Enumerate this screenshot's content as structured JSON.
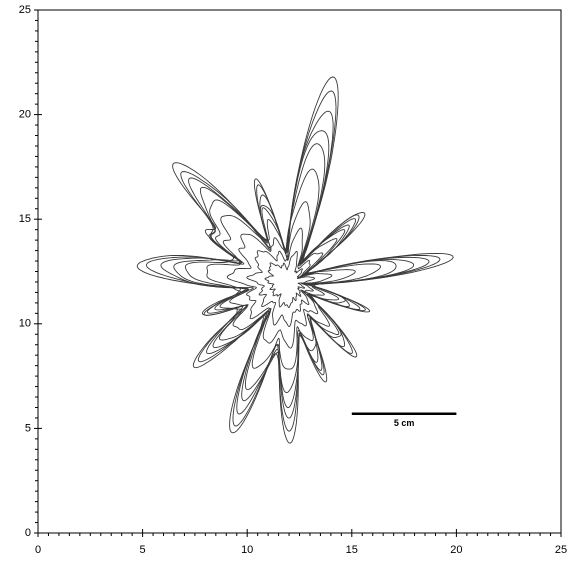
{
  "chart_data": {
    "type": "growth-pattern",
    "xlim": [
      0,
      25
    ],
    "ylim": [
      0,
      25
    ],
    "xticks": [
      0,
      5,
      10,
      15,
      20,
      25
    ],
    "yticks": [
      0,
      5,
      10,
      15,
      20,
      25
    ],
    "x_minor_ticks": [
      0.5,
      1,
      1.5,
      2,
      2.5,
      3,
      3.5,
      4,
      4.5,
      5.5,
      6,
      6.5,
      7,
      7.5,
      8,
      8.5,
      9,
      9.5,
      10.5,
      11,
      11.5,
      12,
      12.5,
      13,
      13.5,
      14,
      14.5,
      15.5,
      16,
      16.5,
      17,
      17.5,
      18,
      18.5,
      19,
      19.5,
      20.5,
      21,
      21.5,
      22,
      22.5,
      23,
      23.5,
      24,
      24.5
    ],
    "y_minor_ticks": [
      0.5,
      1,
      1.5,
      2,
      2.5,
      3,
      3.5,
      4,
      4.5,
      5.5,
      6,
      6.5,
      7,
      7.5,
      8,
      8.5,
      9,
      9.5,
      10.5,
      11,
      11.5,
      12,
      12.5,
      13,
      13.5,
      14,
      14.5,
      15.5,
      16,
      16.5,
      17,
      17.5,
      18,
      18.5,
      19,
      19.5,
      20.5,
      21,
      21.5,
      22,
      22.5,
      23,
      23.5,
      24,
      24.5
    ],
    "scale_bar": {
      "x": [
        15,
        20
      ],
      "y": 5.7,
      "label": "5 cm"
    }
  }
}
